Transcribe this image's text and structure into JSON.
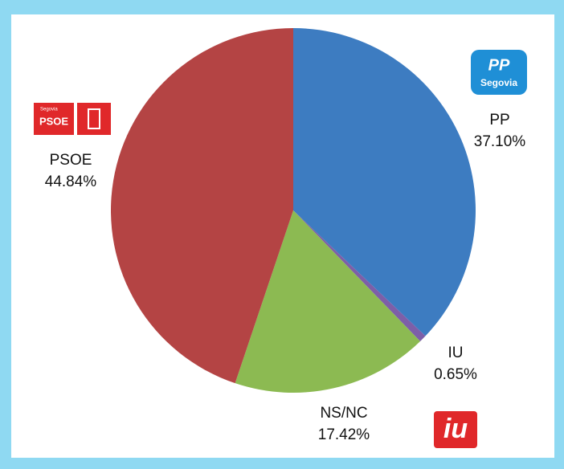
{
  "chart_data": {
    "type": "pie",
    "categories": [
      "PP",
      "IU",
      "NS/NC",
      "PSOE"
    ],
    "values": [
      37.1,
      0.65,
      17.42,
      44.84
    ],
    "value_labels": [
      "37.10%",
      "0.65%",
      "17.42%",
      "44.84%"
    ],
    "colors": [
      "#3d7cc1",
      "#7d5fa8",
      "#8cba52",
      "#b44444"
    ],
    "logo_texts": {
      "pp": [
        "PP",
        "Segovia"
      ],
      "psoe": [
        "Segovia",
        "PSOE"
      ],
      "iu": [
        "iu"
      ]
    }
  }
}
